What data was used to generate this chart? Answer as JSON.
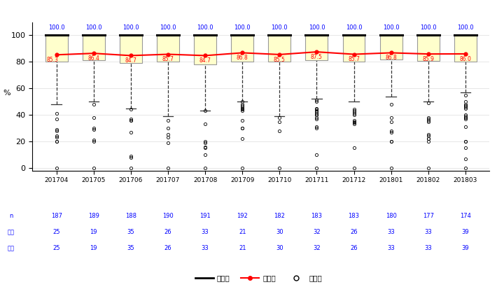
{
  "periods": [
    "201704",
    "201705",
    "201706",
    "201707",
    "201708",
    "201709",
    "201710",
    "201711",
    "201712",
    "201801",
    "201802",
    "201803"
  ],
  "means": [
    85.3,
    86.4,
    84.7,
    85.7,
    84.7,
    86.8,
    85.5,
    87.5,
    85.7,
    86.8,
    85.9,
    86.0
  ],
  "medians": [
    100.0,
    100.0,
    100.0,
    100.0,
    100.0,
    100.0,
    100.0,
    100.0,
    100.0,
    100.0,
    100.0,
    100.0
  ],
  "q1": [
    80.0,
    81.3,
    79.0,
    80.0,
    77.8,
    80.0,
    80.0,
    81.3,
    80.0,
    81.8,
    80.6,
    80.0
  ],
  "q3": [
    100.0,
    100.0,
    100.0,
    100.0,
    100.0,
    100.0,
    100.0,
    100.0,
    100.0,
    100.0,
    100.0,
    100.0
  ],
  "whisker_low": [
    48.0,
    50.0,
    45.0,
    39.0,
    43.0,
    50.0,
    39.0,
    52.0,
    50.0,
    54.0,
    50.0,
    57.0
  ],
  "whisker_high": [
    100.0,
    100.0,
    100.0,
    100.0,
    100.0,
    100.0,
    100.0,
    100.0,
    100.0,
    100.0,
    100.0,
    100.0
  ],
  "outlier_sets": [
    [
      0,
      41,
      37,
      29,
      28,
      24,
      23,
      20,
      20
    ],
    [
      0,
      48,
      38,
      30,
      29,
      21,
      20
    ],
    [
      0,
      8,
      9,
      27,
      36,
      36,
      37,
      44
    ],
    [
      0,
      19,
      23,
      25,
      30,
      36
    ],
    [
      0,
      10,
      15,
      16,
      19,
      20,
      33,
      43
    ],
    [
      0,
      22,
      30,
      30,
      36,
      43,
      44,
      45,
      46,
      47,
      48,
      50
    ],
    [
      0,
      28,
      35,
      38
    ],
    [
      0,
      10,
      30,
      31,
      37,
      38,
      40,
      40,
      41,
      42,
      43,
      44,
      45,
      50,
      51
    ],
    [
      0,
      15,
      33,
      34,
      35,
      36,
      40,
      41,
      42,
      43,
      44
    ],
    [
      0,
      20,
      20,
      27,
      28,
      35,
      38,
      48
    ],
    [
      0,
      20,
      22,
      22,
      24,
      25,
      35,
      36,
      37,
      38,
      49
    ],
    [
      0,
      7,
      15,
      20,
      20,
      31,
      37,
      38,
      38,
      39,
      40,
      45,
      46,
      47,
      47,
      48,
      50,
      55
    ]
  ],
  "subtitle_data": [
    [
      "n",
      "187",
      "189",
      "188",
      "190",
      "191",
      "192",
      "182",
      "183",
      "183",
      "180",
      "177",
      "174"
    ],
    [
      "分子",
      "25",
      "19",
      "35",
      "26",
      "33",
      "21",
      "30",
      "32",
      "26",
      "33",
      "33",
      "39"
    ],
    [
      "分母",
      "25",
      "19",
      "35",
      "26",
      "33",
      "21",
      "30",
      "32",
      "26",
      "33",
      "33",
      "39"
    ]
  ],
  "box_color": "#FFFFCC",
  "box_edge_color": "#999999",
  "median_color": "#000000",
  "mean_color": "#FF0000",
  "whisker_color": "#333333",
  "outlier_color": "#000000",
  "mean_label_color": "#FF0000",
  "median_top_color": "#0000FF",
  "subtitle_color": "#0000FF",
  "ylabel": "%",
  "ylim": [
    -2,
    110
  ],
  "yticks": [
    0,
    20,
    40,
    60,
    80,
    100
  ],
  "legend_median_label": "中央値",
  "legend_mean_label": "平均値",
  "legend_outlier_label": "外れ値"
}
